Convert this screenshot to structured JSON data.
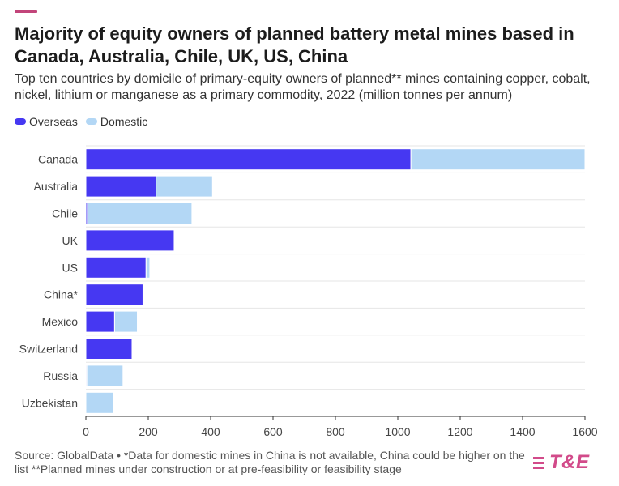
{
  "header": {
    "title": "Majority of equity owners of planned battery metal mines based in Canada, Australia, Chile, UK, US, China",
    "subtitle": "Top ten countries by domicile of primary-equity owners of planned** mines containing copper, cobalt, nickel, lithium or manganese as a primary commodity, 2022 (million tonnes per annum)"
  },
  "legend": [
    {
      "label": "Overseas",
      "color": "#4638f2"
    },
    {
      "label": "Domestic",
      "color": "#b3d7f5"
    }
  ],
  "chart_data": {
    "type": "bar",
    "orientation": "horizontal",
    "stacked": true,
    "title": "Majority of equity owners of planned battery metal mines based in Canada, Australia, Chile, UK, US, China",
    "xlabel": "",
    "ylabel": "",
    "xlim": [
      0,
      1600
    ],
    "x_ticks": [
      "0",
      "200",
      "400",
      "600",
      "800",
      "1000",
      "1200",
      "1400",
      "1600"
    ],
    "grid": true,
    "legend_position": "top-left",
    "categories": [
      "Canada",
      "Australia",
      "Chile",
      "UK",
      "US",
      "China*",
      "Mexico",
      "Switzerland",
      "Russia",
      "Uzbekistan"
    ],
    "series": [
      {
        "name": "Overseas",
        "color": "#4638f2",
        "values": [
          1042,
          225,
          5,
          283,
          193,
          183,
          92,
          148,
          3,
          0
        ]
      },
      {
        "name": "Domestic",
        "color": "#b3d7f5",
        "values": [
          558,
          181,
          335,
          0,
          12,
          0,
          73,
          0,
          116,
          88
        ]
      }
    ]
  },
  "footer": {
    "source": "Source: GlobalData • *Data for domestic mines in China is not available, China could be higher on the list **Planned mines under construction or at pre-feasibility or feasibility stage"
  },
  "logo": {
    "text": "T&E"
  }
}
